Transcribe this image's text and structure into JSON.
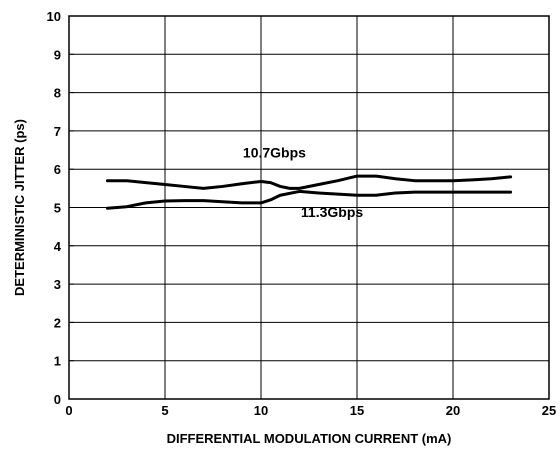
{
  "chart_data": {
    "type": "line",
    "xlabel": "DIFFERENTIAL MODULATION CURRENT (mA)",
    "ylabel": "DETERMINISTIC JITTER (ps)",
    "xlim": [
      0,
      25
    ],
    "ylim": [
      0,
      10
    ],
    "x_ticks": [
      "0",
      "5",
      "10",
      "15",
      "20",
      "25"
    ],
    "y_ticks": [
      "0",
      "1",
      "2",
      "3",
      "4",
      "5",
      "6",
      "7",
      "8",
      "9",
      "10"
    ],
    "grid": true,
    "line_color": "#000000",
    "series": [
      {
        "name": "10.7Gbps",
        "x": [
          2,
          3,
          4,
          5,
          6,
          7,
          8,
          9,
          10,
          10.5,
          11,
          11.5,
          12,
          13,
          14,
          15,
          16,
          17,
          18,
          19,
          20,
          21,
          22,
          23
        ],
        "values": [
          5.7,
          5.7,
          5.65,
          5.6,
          5.55,
          5.5,
          5.55,
          5.62,
          5.68,
          5.65,
          5.55,
          5.5,
          5.5,
          5.6,
          5.7,
          5.82,
          5.82,
          5.75,
          5.7,
          5.7,
          5.7,
          5.72,
          5.75,
          5.8
        ]
      },
      {
        "name": "11.3Gbps",
        "x": [
          2,
          3,
          4,
          5,
          6,
          7,
          8,
          9,
          10,
          10.5,
          11,
          12,
          13,
          14,
          15,
          16,
          17,
          18,
          19,
          20,
          21,
          22,
          23
        ],
        "values": [
          4.98,
          5.02,
          5.12,
          5.17,
          5.18,
          5.18,
          5.15,
          5.12,
          5.12,
          5.2,
          5.32,
          5.42,
          5.38,
          5.35,
          5.32,
          5.32,
          5.38,
          5.4,
          5.4,
          5.4,
          5.4,
          5.4,
          5.4
        ]
      }
    ],
    "annotations": [
      {
        "text": "10.7Gbps",
        "x": 10.7,
        "y": 6.3
      },
      {
        "text": "11.3Gbps",
        "x": 13.7,
        "y": 4.75
      }
    ]
  }
}
